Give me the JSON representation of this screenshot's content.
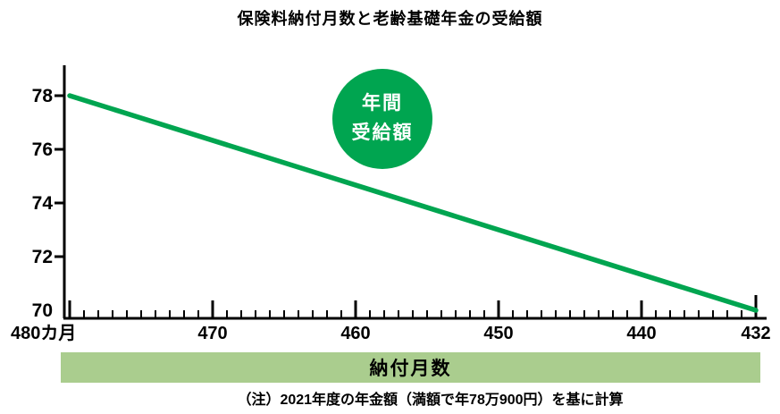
{
  "title": "保険料納付月数と老齢基礎年金の受給額",
  "badge": {
    "line1": "年間",
    "line2": "受給額"
  },
  "x_axis_banner": "納付月数",
  "note": "（注）2021年度の年金額（満額で年78万900円）を基に計算",
  "colors": {
    "line": "#00a550",
    "badge_bg": "#00a550",
    "badge_text": "#ffffff",
    "banner_bg": "#aacd8e",
    "axis": "#000000",
    "text": "#000000",
    "background": "#ffffff"
  },
  "chart_data": {
    "type": "line",
    "title": "保険料納付月数と老齢基礎年金の受給額",
    "annotation": "年間受給額",
    "grid": false,
    "x_axis": {
      "label": "納付月数",
      "direction": "decreasing_left_to_right",
      "range": [
        480,
        432
      ],
      "minor_tick_step": 1,
      "major_ticks": [
        480,
        470,
        460,
        450,
        440,
        432
      ],
      "major_tick_labels": [
        "480カ月",
        "470",
        "460",
        "450",
        "440",
        "432"
      ]
    },
    "y_axis": {
      "range": [
        70,
        78
      ],
      "ticks": [
        78,
        76,
        74,
        72,
        70
      ],
      "tick_labels": [
        "78",
        "76",
        "74",
        "72",
        "70"
      ]
    },
    "series": [
      {
        "name": "年間受給額",
        "points": [
          [
            480,
            78
          ],
          [
            432,
            70
          ]
        ]
      }
    ],
    "note": "（注）2021年度の年金額（満額で年78万900円）を基に計算"
  }
}
